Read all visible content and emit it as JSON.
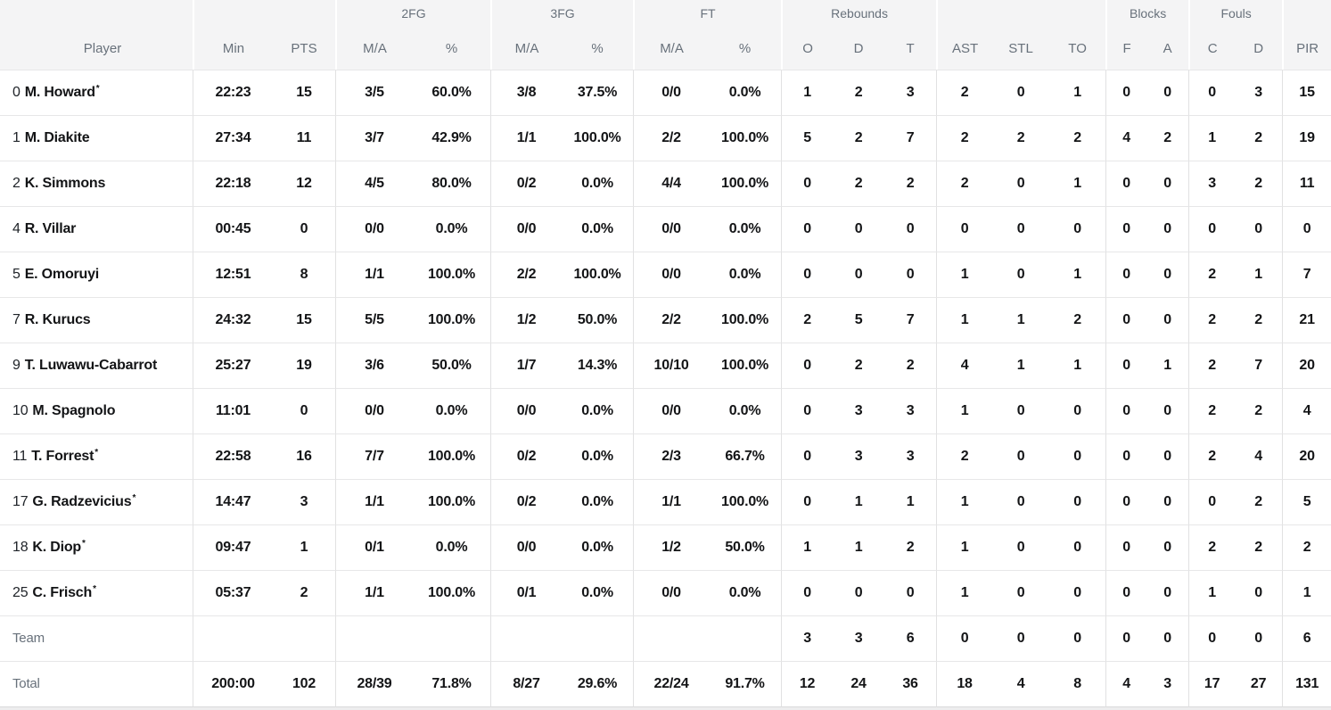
{
  "starter_mark": "*",
  "header": {
    "groups": [
      {
        "label": "",
        "span": 1
      },
      {
        "label": "",
        "span": 2
      },
      {
        "label": "2FG",
        "span": 2
      },
      {
        "label": "3FG",
        "span": 2
      },
      {
        "label": "FT",
        "span": 2
      },
      {
        "label": "Rebounds",
        "span": 3
      },
      {
        "label": "",
        "span": 3
      },
      {
        "label": "Blocks",
        "span": 2
      },
      {
        "label": "Fouls",
        "span": 2
      },
      {
        "label": "",
        "span": 1
      }
    ],
    "columns": [
      "Player",
      "Min",
      "PTS",
      "M/A",
      "%",
      "M/A",
      "%",
      "M/A",
      "%",
      "O",
      "D",
      "T",
      "AST",
      "STL",
      "TO",
      "F",
      "A",
      "C",
      "D",
      "PIR"
    ]
  },
  "rows": [
    {
      "number": "0",
      "name": "M. Howard",
      "starter": true,
      "stats": [
        "22:23",
        "15",
        "3/5",
        "60.0%",
        "3/8",
        "37.5%",
        "0/0",
        "0.0%",
        "1",
        "2",
        "3",
        "2",
        "0",
        "1",
        "0",
        "0",
        "0",
        "3",
        "15"
      ]
    },
    {
      "number": "1",
      "name": "M. Diakite",
      "starter": false,
      "stats": [
        "27:34",
        "11",
        "3/7",
        "42.9%",
        "1/1",
        "100.0%",
        "2/2",
        "100.0%",
        "5",
        "2",
        "7",
        "2",
        "2",
        "2",
        "4",
        "2",
        "1",
        "2",
        "19"
      ]
    },
    {
      "number": "2",
      "name": "K. Simmons",
      "starter": false,
      "stats": [
        "22:18",
        "12",
        "4/5",
        "80.0%",
        "0/2",
        "0.0%",
        "4/4",
        "100.0%",
        "0",
        "2",
        "2",
        "2",
        "0",
        "1",
        "0",
        "0",
        "3",
        "2",
        "11"
      ]
    },
    {
      "number": "4",
      "name": "R. Villar",
      "starter": false,
      "stats": [
        "00:45",
        "0",
        "0/0",
        "0.0%",
        "0/0",
        "0.0%",
        "0/0",
        "0.0%",
        "0",
        "0",
        "0",
        "0",
        "0",
        "0",
        "0",
        "0",
        "0",
        "0",
        "0"
      ]
    },
    {
      "number": "5",
      "name": "E. Omoruyi",
      "starter": false,
      "stats": [
        "12:51",
        "8",
        "1/1",
        "100.0%",
        "2/2",
        "100.0%",
        "0/0",
        "0.0%",
        "0",
        "0",
        "0",
        "1",
        "0",
        "1",
        "0",
        "0",
        "2",
        "1",
        "7"
      ]
    },
    {
      "number": "7",
      "name": "R. Kurucs",
      "starter": false,
      "stats": [
        "24:32",
        "15",
        "5/5",
        "100.0%",
        "1/2",
        "50.0%",
        "2/2",
        "100.0%",
        "2",
        "5",
        "7",
        "1",
        "1",
        "2",
        "0",
        "0",
        "2",
        "2",
        "21"
      ]
    },
    {
      "number": "9",
      "name": "T. Luwawu-Cabarrot",
      "starter": false,
      "stats": [
        "25:27",
        "19",
        "3/6",
        "50.0%",
        "1/7",
        "14.3%",
        "10/10",
        "100.0%",
        "0",
        "2",
        "2",
        "4",
        "1",
        "1",
        "0",
        "1",
        "2",
        "7",
        "20"
      ]
    },
    {
      "number": "10",
      "name": "M. Spagnolo",
      "starter": false,
      "stats": [
        "11:01",
        "0",
        "0/0",
        "0.0%",
        "0/0",
        "0.0%",
        "0/0",
        "0.0%",
        "0",
        "3",
        "3",
        "1",
        "0",
        "0",
        "0",
        "0",
        "2",
        "2",
        "4"
      ]
    },
    {
      "number": "11",
      "name": "T. Forrest",
      "starter": true,
      "stats": [
        "22:58",
        "16",
        "7/7",
        "100.0%",
        "0/2",
        "0.0%",
        "2/3",
        "66.7%",
        "0",
        "3",
        "3",
        "2",
        "0",
        "0",
        "0",
        "0",
        "2",
        "4",
        "20"
      ]
    },
    {
      "number": "17",
      "name": "G. Radzevicius",
      "starter": true,
      "stats": [
        "14:47",
        "3",
        "1/1",
        "100.0%",
        "0/2",
        "0.0%",
        "1/1",
        "100.0%",
        "0",
        "1",
        "1",
        "1",
        "0",
        "0",
        "0",
        "0",
        "0",
        "2",
        "5"
      ]
    },
    {
      "number": "18",
      "name": "K. Diop",
      "starter": true,
      "stats": [
        "09:47",
        "1",
        "0/1",
        "0.0%",
        "0/0",
        "0.0%",
        "1/2",
        "50.0%",
        "1",
        "1",
        "2",
        "1",
        "0",
        "0",
        "0",
        "0",
        "2",
        "2",
        "2"
      ]
    },
    {
      "number": "25",
      "name": "C. Frisch",
      "starter": true,
      "stats": [
        "05:37",
        "2",
        "1/1",
        "100.0%",
        "0/1",
        "0.0%",
        "0/0",
        "0.0%",
        "0",
        "0",
        "0",
        "1",
        "0",
        "0",
        "0",
        "0",
        "1",
        "0",
        "1"
      ]
    },
    {
      "label": "Team",
      "stats": [
        "",
        "",
        "",
        "",
        "",
        "",
        "",
        "",
        "3",
        "3",
        "6",
        "0",
        "0",
        "0",
        "0",
        "0",
        "0",
        "0",
        "6"
      ]
    },
    {
      "label": "Total",
      "total": true,
      "stats": [
        "200:00",
        "102",
        "28/39",
        "71.8%",
        "8/27",
        "29.6%",
        "22/24",
        "91.7%",
        "12",
        "24",
        "36",
        "18",
        "4",
        "8",
        "4",
        "3",
        "17",
        "27",
        "131"
      ]
    }
  ],
  "colors": {
    "header_bg": "#f4f4f5",
    "header_text": "#68717b",
    "body_text": "#131416",
    "row_border": "#e7e7e8",
    "group_border": "#e1e1e2",
    "page_bg": "#ededee"
  }
}
